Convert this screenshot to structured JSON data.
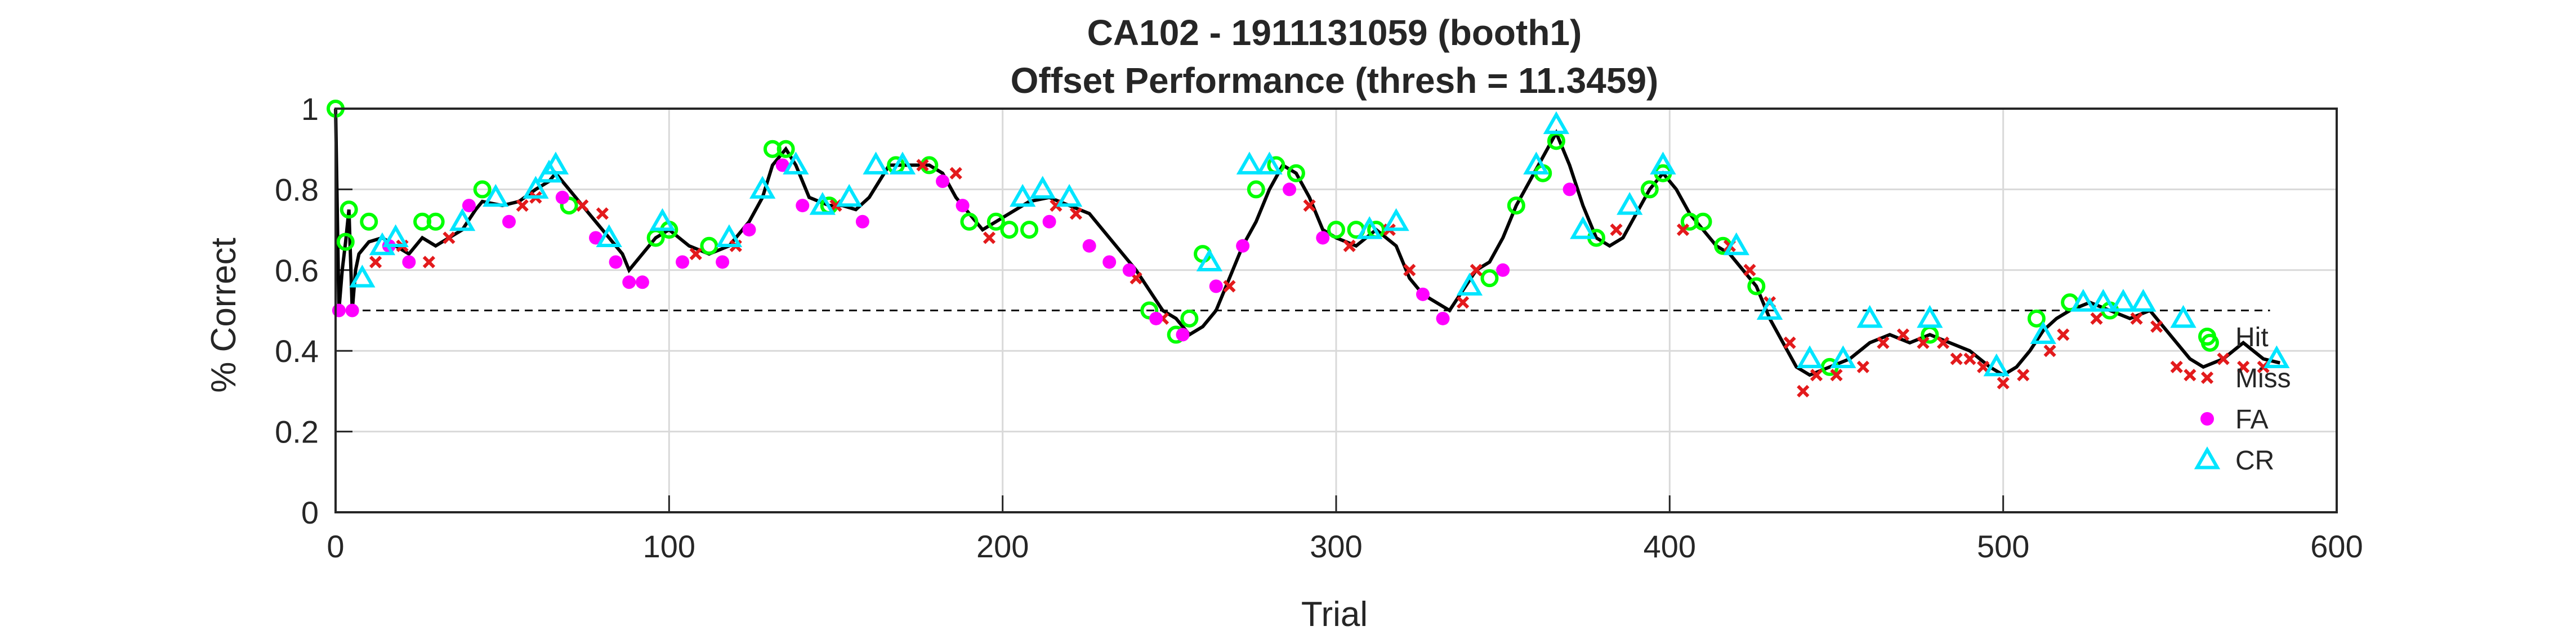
{
  "chart_data": {
    "type": "line",
    "title": "CA102 - 1911131059 (booth1)",
    "subtitle": "Offset Performance (thresh = 11.3459)",
    "xlabel": "Trial",
    "ylabel": "% Correct",
    "xlim": [
      0,
      600
    ],
    "ylim": [
      0,
      1
    ],
    "xticks": [
      "0",
      "100",
      "200",
      "300",
      "400",
      "500",
      "600"
    ],
    "yticks": [
      "0",
      "0.2",
      "0.4",
      "0.6",
      "0.8",
      "1"
    ],
    "grid": true,
    "legend_position": "right",
    "reference_line": 0.5,
    "performance": {
      "name": "",
      "x": [
        0,
        1,
        2,
        3,
        4,
        5,
        6,
        7,
        10,
        14,
        18,
        22,
        26,
        30,
        34,
        38,
        42,
        44,
        50,
        55,
        60,
        64,
        66,
        70,
        74,
        78,
        82,
        86,
        88,
        92,
        96,
        100,
        106,
        112,
        118,
        124,
        128,
        131,
        135,
        138,
        142,
        148,
        152,
        156,
        160,
        166,
        172,
        178,
        182,
        186,
        190,
        194,
        198,
        202,
        208,
        214,
        220,
        226,
        230,
        236,
        240,
        244,
        248,
        252,
        256,
        260,
        264,
        268,
        272,
        276,
        280,
        284,
        288,
        292,
        296,
        300,
        306,
        312,
        318,
        322,
        326,
        330,
        334,
        338,
        342,
        346,
        350,
        354,
        358,
        362,
        366,
        370,
        374,
        378,
        382,
        386,
        390,
        394,
        398,
        402,
        406,
        410,
        414,
        418,
        422,
        426,
        430,
        434,
        438,
        442,
        448,
        454,
        460,
        466,
        472,
        478,
        484,
        490,
        496,
        500,
        504,
        508,
        512,
        516,
        520,
        526,
        532,
        538,
        544,
        548,
        552,
        556,
        560,
        566,
        572,
        578,
        583
      ],
      "y": [
        1.0,
        0.5,
        0.6,
        0.67,
        0.75,
        0.5,
        0.6,
        0.64,
        0.67,
        0.68,
        0.66,
        0.64,
        0.68,
        0.66,
        0.68,
        0.7,
        0.75,
        0.77,
        0.76,
        0.77,
        0.8,
        0.82,
        0.84,
        0.8,
        0.76,
        0.72,
        0.68,
        0.64,
        0.6,
        0.64,
        0.68,
        0.7,
        0.66,
        0.64,
        0.66,
        0.72,
        0.78,
        0.86,
        0.9,
        0.86,
        0.78,
        0.76,
        0.76,
        0.75,
        0.78,
        0.86,
        0.86,
        0.86,
        0.84,
        0.78,
        0.74,
        0.7,
        0.72,
        0.74,
        0.77,
        0.78,
        0.76,
        0.74,
        0.7,
        0.64,
        0.6,
        0.55,
        0.5,
        0.48,
        0.44,
        0.46,
        0.5,
        0.58,
        0.66,
        0.72,
        0.8,
        0.86,
        0.84,
        0.78,
        0.7,
        0.68,
        0.66,
        0.7,
        0.66,
        0.58,
        0.54,
        0.52,
        0.5,
        0.55,
        0.6,
        0.62,
        0.68,
        0.76,
        0.82,
        0.88,
        0.94,
        0.86,
        0.76,
        0.68,
        0.66,
        0.68,
        0.74,
        0.8,
        0.84,
        0.8,
        0.74,
        0.7,
        0.66,
        0.64,
        0.6,
        0.56,
        0.48,
        0.42,
        0.36,
        0.34,
        0.36,
        0.38,
        0.42,
        0.44,
        0.42,
        0.44,
        0.42,
        0.4,
        0.36,
        0.34,
        0.36,
        0.4,
        0.45,
        0.48,
        0.5,
        0.52,
        0.5,
        0.48,
        0.5,
        0.46,
        0.42,
        0.38,
        0.36,
        0.38,
        0.42,
        0.38,
        0.37
      ]
    },
    "series": [
      {
        "name": "Hit",
        "marker": "circle-open",
        "color": "#00ff00",
        "x": [
          0,
          3,
          4,
          10,
          26,
          30,
          44,
          70,
          96,
          100,
          112,
          131,
          135,
          148,
          168,
          178,
          190,
          198,
          202,
          208,
          244,
          252,
          256,
          260,
          276,
          282,
          288,
          300,
          306,
          312,
          346,
          354,
          362,
          366,
          378,
          394,
          398,
          406,
          410,
          416,
          426,
          448,
          478,
          510,
          520,
          532,
          562
        ],
        "y": [
          1.0,
          0.67,
          0.75,
          0.72,
          0.72,
          0.72,
          0.8,
          0.76,
          0.68,
          0.7,
          0.66,
          0.9,
          0.9,
          0.76,
          0.86,
          0.86,
          0.72,
          0.72,
          0.7,
          0.7,
          0.5,
          0.44,
          0.48,
          0.64,
          0.8,
          0.86,
          0.84,
          0.7,
          0.7,
          0.7,
          0.58,
          0.76,
          0.84,
          0.92,
          0.68,
          0.8,
          0.84,
          0.72,
          0.72,
          0.66,
          0.56,
          0.36,
          0.44,
          0.48,
          0.52,
          0.5,
          0.42
        ]
      },
      {
        "name": "Miss",
        "marker": "x",
        "color": "#e31a1c",
        "x": [
          12,
          20,
          28,
          34,
          56,
          60,
          74,
          80,
          108,
          120,
          150,
          176,
          186,
          196,
          216,
          222,
          240,
          248,
          268,
          292,
          304,
          316,
          322,
          338,
          342,
          384,
          404,
          418,
          424,
          430,
          436,
          440,
          444,
          450,
          458,
          464,
          470,
          476,
          482,
          486,
          490,
          494,
          500,
          506,
          514,
          518,
          528,
          540,
          546,
          552,
          556,
          566,
          572,
          578
        ],
        "y": [
          0.62,
          0.66,
          0.62,
          0.68,
          0.76,
          0.78,
          0.76,
          0.74,
          0.64,
          0.66,
          0.76,
          0.86,
          0.84,
          0.68,
          0.76,
          0.74,
          0.58,
          0.48,
          0.56,
          0.76,
          0.66,
          0.7,
          0.6,
          0.52,
          0.6,
          0.7,
          0.7,
          0.66,
          0.6,
          0.52,
          0.42,
          0.3,
          0.34,
          0.34,
          0.36,
          0.42,
          0.44,
          0.42,
          0.42,
          0.38,
          0.38,
          0.36,
          0.32,
          0.34,
          0.4,
          0.44,
          0.48,
          0.48,
          0.46,
          0.36,
          0.34,
          0.38,
          0.36,
          0.36
        ]
      },
      {
        "name": "FA",
        "marker": "dot",
        "color": "#ff00ff",
        "x": [
          1,
          5,
          16,
          22,
          40,
          52,
          68,
          78,
          84,
          88,
          92,
          104,
          116,
          124,
          134,
          140,
          158,
          182,
          188,
          214,
          226,
          232,
          238,
          246,
          254,
          264,
          272,
          286,
          296,
          326,
          332,
          350,
          370
        ],
        "y": [
          0.5,
          0.5,
          0.66,
          0.62,
          0.76,
          0.72,
          0.78,
          0.68,
          0.62,
          0.57,
          0.57,
          0.62,
          0.62,
          0.7,
          0.86,
          0.76,
          0.72,
          0.82,
          0.76,
          0.72,
          0.66,
          0.62,
          0.6,
          0.48,
          0.44,
          0.56,
          0.66,
          0.8,
          0.68,
          0.54,
          0.48,
          0.6,
          0.8
        ]
      },
      {
        "name": "CR",
        "marker": "triangle-open",
        "color": "#00e5ff",
        "x": [
          8,
          14,
          18,
          38,
          48,
          60,
          64,
          66,
          82,
          98,
          118,
          128,
          138,
          146,
          154,
          162,
          170,
          206,
          212,
          220,
          262,
          274,
          280,
          310,
          318,
          340,
          360,
          366,
          374,
          388,
          398,
          420,
          430,
          442,
          452,
          460,
          478,
          498,
          512,
          524,
          530,
          536,
          542,
          554,
          582
        ],
        "y": [
          0.58,
          0.66,
          0.68,
          0.72,
          0.78,
          0.8,
          0.84,
          0.86,
          0.68,
          0.72,
          0.68,
          0.8,
          0.86,
          0.76,
          0.78,
          0.86,
          0.86,
          0.78,
          0.8,
          0.78,
          0.62,
          0.86,
          0.86,
          0.7,
          0.72,
          0.56,
          0.86,
          0.96,
          0.7,
          0.76,
          0.86,
          0.66,
          0.5,
          0.38,
          0.38,
          0.48,
          0.48,
          0.36,
          0.44,
          0.52,
          0.52,
          0.52,
          0.52,
          0.48,
          0.38
        ]
      }
    ]
  }
}
